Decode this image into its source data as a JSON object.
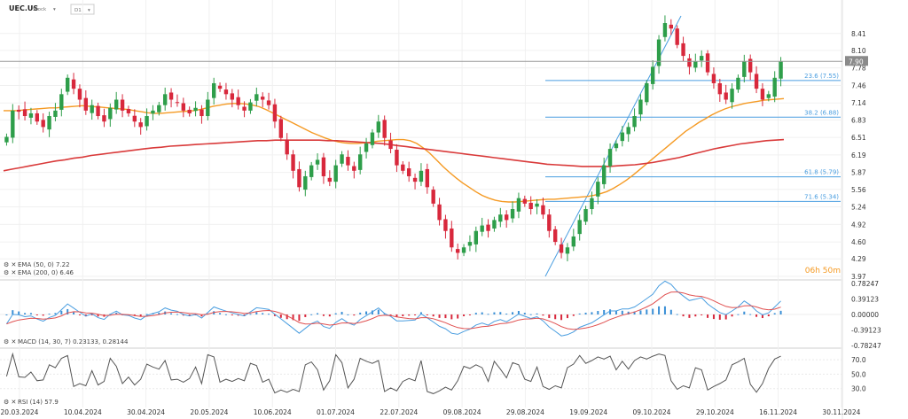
{
  "header": {
    "symbol": "UEC.US",
    "symbol_type": "Stock",
    "interval": "D1"
  },
  "colors": {
    "up": "#2e9e4a",
    "down": "#d8283c",
    "ema50": "#f59a23",
    "ema200": "#d93a3a",
    "fib": "#4a9ee0",
    "rsi": "#555555",
    "macd_line": "#4a9ee0",
    "macd_signal": "#e05050"
  },
  "timer": "06h 50m",
  "chart_data": [
    {
      "type": "candlestick",
      "title": "UEC.US",
      "y_ticks": [
        "8.41",
        "8.10",
        "7.78",
        "7.46",
        "7.14",
        "6.83",
        "6.51",
        "6.19",
        "5.87",
        "5.56",
        "5.24",
        "4.92",
        "4.60",
        "4.29",
        "3.97"
      ],
      "ylim": [
        3.97,
        8.73
      ],
      "last_price": "7.90",
      "x_ticks": [
        "20.03.2024",
        "10.04.2024",
        "30.04.2024",
        "20.05.2024",
        "10.06.2024",
        "01.07.2024",
        "22.07.2024",
        "09.08.2024",
        "29.08.2024",
        "19.09.2024",
        "09.10.2024",
        "29.10.2024",
        "16.11.2024",
        "30.11.2024"
      ],
      "candles_close": [
        6.52,
        7.0,
        6.98,
        6.9,
        6.95,
        6.8,
        6.7,
        6.9,
        7.0,
        7.3,
        7.6,
        7.4,
        7.2,
        7.0,
        7.1,
        6.9,
        6.8,
        7.05,
        7.2,
        7.0,
        6.95,
        6.8,
        6.7,
        6.9,
        7.0,
        7.1,
        7.3,
        7.2,
        7.15,
        7.0,
        6.95,
        7.05,
        6.9,
        7.2,
        7.5,
        7.4,
        7.3,
        7.2,
        7.1,
        7.0,
        7.15,
        7.3,
        7.2,
        7.1,
        6.8,
        6.5,
        6.2,
        5.9,
        5.6,
        5.8,
        6.0,
        6.1,
        5.8,
        5.7,
        6.0,
        6.2,
        6.0,
        5.9,
        6.2,
        6.4,
        6.6,
        6.8,
        6.5,
        6.3,
        6.0,
        5.9,
        5.8,
        5.7,
        5.9,
        5.6,
        5.3,
        5.0,
        4.8,
        4.5,
        4.4,
        4.5,
        4.6,
        4.8,
        4.9,
        4.8,
        5.0,
        5.1,
        5.0,
        5.2,
        5.4,
        5.3,
        5.2,
        5.3,
        5.1,
        4.8,
        4.6,
        4.4,
        4.5,
        4.7,
        5.0,
        5.2,
        5.4,
        5.7,
        6.0,
        6.3,
        6.4,
        6.6,
        6.7,
        6.9,
        7.2,
        7.5,
        7.8,
        8.3,
        8.6,
        8.5,
        8.2,
        8.0,
        7.8,
        7.9,
        8.0,
        7.7,
        7.5,
        7.3,
        7.2,
        7.4,
        7.6,
        7.9,
        7.7,
        7.4,
        7.2,
        7.3,
        7.6,
        7.9
      ],
      "fib_levels": [
        {
          "label": "23.6 (7.55)",
          "value": 7.55
        },
        {
          "label": "38.2 (6.88)",
          "value": 6.88
        },
        {
          "label": "61.8 (5.79)",
          "value": 5.79
        },
        {
          "label": "71.6 (5.34)",
          "value": 5.34
        }
      ],
      "series": [
        {
          "name": "EMA (50, 0) 7.22",
          "values": [
            7.0,
            7.0,
            7.0,
            7.01,
            7.02,
            7.03,
            7.04,
            7.05,
            7.05,
            7.06,
            7.07,
            7.08,
            7.09,
            7.08,
            7.07,
            7.06,
            7.05,
            7.04,
            7.03,
            7.02,
            7.0,
            6.98,
            6.96,
            6.95,
            6.95,
            6.96,
            6.97,
            6.98,
            6.99,
            7.0,
            7.02,
            7.05,
            7.08,
            7.1,
            7.12,
            7.13,
            7.13,
            7.12,
            7.1,
            7.07,
            7.02,
            6.96,
            6.9,
            6.84,
            6.78,
            6.72,
            6.66,
            6.6,
            6.55,
            6.5,
            6.46,
            6.43,
            6.41,
            6.4,
            6.4,
            6.41,
            6.42,
            6.44,
            6.45,
            6.46,
            6.47,
            6.47,
            6.45,
            6.4,
            6.32,
            6.22,
            6.1,
            5.98,
            5.87,
            5.77,
            5.68,
            5.6,
            5.52,
            5.45,
            5.4,
            5.36,
            5.34,
            5.33,
            5.33,
            5.34,
            5.35,
            5.36,
            5.37,
            5.38,
            5.38,
            5.39,
            5.4,
            5.41,
            5.42,
            5.43,
            5.45,
            5.48,
            5.52,
            5.58,
            5.65,
            5.73,
            5.82,
            5.92,
            6.02,
            6.12,
            6.22,
            6.32,
            6.42,
            6.52,
            6.62,
            6.7,
            6.78,
            6.85,
            6.92,
            6.98,
            7.03,
            7.07,
            7.1,
            7.13,
            7.15,
            7.17,
            7.19,
            7.2,
            7.21,
            7.22
          ]
        },
        {
          "name": "EMA (200, 0) 6.46",
          "values": [
            5.9,
            5.93,
            5.96,
            5.99,
            6.02,
            6.05,
            6.08,
            6.1,
            6.13,
            6.15,
            6.18,
            6.2,
            6.22,
            6.24,
            6.26,
            6.28,
            6.3,
            6.32,
            6.33,
            6.35,
            6.36,
            6.37,
            6.38,
            6.39,
            6.4,
            6.41,
            6.42,
            6.43,
            6.44,
            6.45,
            6.45,
            6.46,
            6.46,
            6.46,
            6.46,
            6.46,
            6.46,
            6.45,
            6.45,
            6.44,
            6.43,
            6.42,
            6.41,
            6.4,
            6.38,
            6.36,
            6.34,
            6.32,
            6.3,
            6.28,
            6.26,
            6.24,
            6.22,
            6.2,
            6.18,
            6.16,
            6.14,
            6.12,
            6.1,
            6.08,
            6.06,
            6.04,
            6.02,
            6.01,
            6.0,
            5.99,
            5.98,
            5.98,
            5.98,
            5.98,
            5.99,
            6.0,
            6.01,
            6.03,
            6.05,
            6.08,
            6.11,
            6.14,
            6.18,
            6.22,
            6.26,
            6.3,
            6.33,
            6.36,
            6.39,
            6.41,
            6.43,
            6.45,
            6.46,
            6.47
          ]
        }
      ]
    },
    {
      "type": "bar",
      "title": "MACD (14, 30, 7) 0.23133, 0.28144",
      "y_ticks": [
        "0.78247",
        "0.39123",
        "0.00000",
        "-0.39123",
        "-0.78247"
      ],
      "ylim": [
        -0.78247,
        0.78247
      ]
    },
    {
      "type": "line",
      "title": "RSI (14) 57.9",
      "y_ticks": [
        "70.0",
        "50.0",
        "30.0"
      ],
      "ylim": [
        10,
        80
      ]
    }
  ]
}
